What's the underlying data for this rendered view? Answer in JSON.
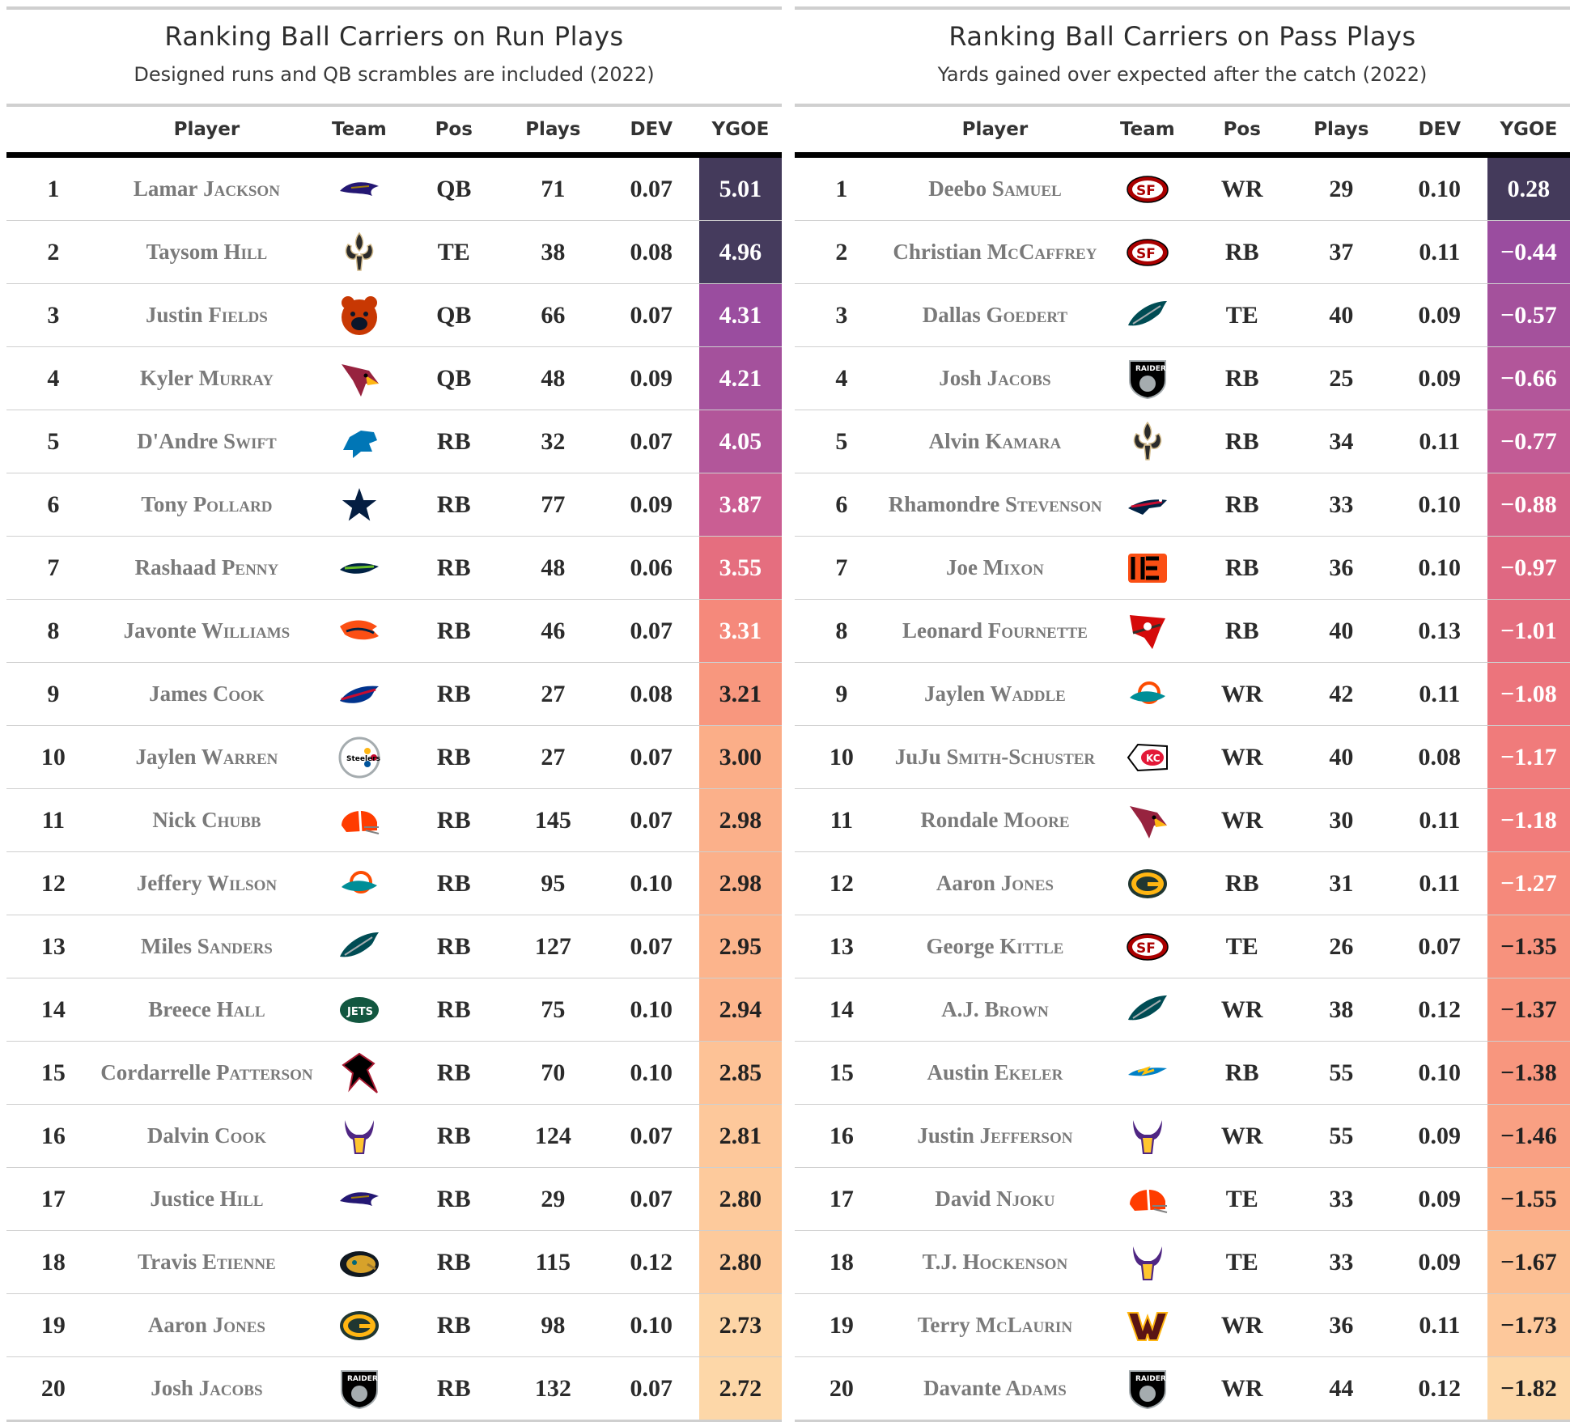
{
  "panels": [
    {
      "title": "Ranking Ball Carriers on Run Plays",
      "subtitle": "Designed runs and QB scrambles are included (2022)",
      "headers": {
        "rank": "",
        "player": "Player",
        "team": "Team",
        "pos": "Pos",
        "plays": "Plays",
        "dev": "DEV",
        "ygoe": "YGOE"
      },
      "rows": [
        {
          "rank": "1",
          "first": "Lamar",
          "last": "Jackson",
          "team": "ravens",
          "pos": "QB",
          "plays": "71",
          "dev": "0.07",
          "ygoe": "5.01",
          "color": "#443a5b",
          "text_color": "#ffffff"
        },
        {
          "rank": "2",
          "first": "Taysom",
          "last": "Hill",
          "team": "saints",
          "pos": "TE",
          "plays": "38",
          "dev": "0.08",
          "ygoe": "4.96",
          "color": "#453b5d",
          "text_color": "#ffffff"
        },
        {
          "rank": "3",
          "first": "Justin",
          "last": "Fields",
          "team": "bears",
          "pos": "QB",
          "plays": "66",
          "dev": "0.07",
          "ygoe": "4.31",
          "color": "#9a4d9f",
          "text_color": "#ffffff"
        },
        {
          "rank": "4",
          "first": "Kyler",
          "last": "Murray",
          "team": "cardinals",
          "pos": "QB",
          "plays": "48",
          "dev": "0.09",
          "ygoe": "4.21",
          "color": "#a4519c",
          "text_color": "#ffffff"
        },
        {
          "rank": "5",
          "first": "D'Andre",
          "last": "Swift",
          "team": "lions",
          "pos": "RB",
          "plays": "32",
          "dev": "0.07",
          "ygoe": "4.05",
          "color": "#b2569a",
          "text_color": "#ffffff"
        },
        {
          "rank": "6",
          "first": "Tony",
          "last": "Pollard",
          "team": "cowboys",
          "pos": "RB",
          "plays": "77",
          "dev": "0.09",
          "ygoe": "3.87",
          "color": "#ca5e93",
          "text_color": "#ffffff"
        },
        {
          "rank": "7",
          "first": "Rashaad",
          "last": "Penny",
          "team": "seahawks",
          "pos": "RB",
          "plays": "48",
          "dev": "0.06",
          "ygoe": "3.55",
          "color": "#e56e7f",
          "text_color": "#ffffff"
        },
        {
          "rank": "8",
          "first": "Javonte",
          "last": "Williams",
          "team": "broncos",
          "pos": "RB",
          "plays": "46",
          "dev": "0.07",
          "ygoe": "3.31",
          "color": "#f5897b",
          "text_color": "#ffffff"
        },
        {
          "rank": "9",
          "first": "James",
          "last": "Cook",
          "team": "bills",
          "pos": "RB",
          "plays": "27",
          "dev": "0.08",
          "ygoe": "3.21",
          "color": "#f8977e",
          "text_color": "#222222"
        },
        {
          "rank": "10",
          "first": "Jaylen",
          "last": "Warren",
          "team": "steelers",
          "pos": "RB",
          "plays": "27",
          "dev": "0.07",
          "ygoe": "3.00",
          "color": "#fbae88",
          "text_color": "#222222"
        },
        {
          "rank": "11",
          "first": "Nick",
          "last": "Chubb",
          "team": "browns",
          "pos": "RB",
          "plays": "145",
          "dev": "0.07",
          "ygoe": "2.98",
          "color": "#fbb08a",
          "text_color": "#222222"
        },
        {
          "rank": "12",
          "first": "Jeffery",
          "last": "Wilson",
          "team": "dolphins",
          "pos": "RB",
          "plays": "95",
          "dev": "0.10",
          "ygoe": "2.98",
          "color": "#fbb08a",
          "text_color": "#222222"
        },
        {
          "rank": "13",
          "first": "Miles",
          "last": "Sanders",
          "team": "eagles",
          "pos": "RB",
          "plays": "127",
          "dev": "0.07",
          "ygoe": "2.95",
          "color": "#fcb48c",
          "text_color": "#222222"
        },
        {
          "rank": "14",
          "first": "Breece",
          "last": "Hall",
          "team": "jets",
          "pos": "RB",
          "plays": "75",
          "dev": "0.10",
          "ygoe": "2.94",
          "color": "#fcb58d",
          "text_color": "#222222"
        },
        {
          "rank": "15",
          "first": "Cordarrelle",
          "last": "Patterson",
          "team": "falcons",
          "pos": "RB",
          "plays": "70",
          "dev": "0.10",
          "ygoe": "2.85",
          "color": "#fdc296",
          "text_color": "#222222"
        },
        {
          "rank": "16",
          "first": "Dalvin",
          "last": "Cook",
          "team": "vikings",
          "pos": "RB",
          "plays": "124",
          "dev": "0.07",
          "ygoe": "2.81",
          "color": "#fdc89b",
          "text_color": "#222222"
        },
        {
          "rank": "17",
          "first": "Justice",
          "last": "Hill",
          "team": "ravens",
          "pos": "RB",
          "plays": "29",
          "dev": "0.07",
          "ygoe": "2.80",
          "color": "#fdca9c",
          "text_color": "#222222"
        },
        {
          "rank": "18",
          "first": "Travis",
          "last": "Etienne",
          "team": "jaguars",
          "pos": "RB",
          "plays": "115",
          "dev": "0.12",
          "ygoe": "2.80",
          "color": "#fdca9c",
          "text_color": "#222222"
        },
        {
          "rank": "19",
          "first": "Aaron",
          "last": "Jones",
          "team": "packers",
          "pos": "RB",
          "plays": "98",
          "dev": "0.10",
          "ygoe": "2.73",
          "color": "#fdd5a6",
          "text_color": "#222222"
        },
        {
          "rank": "20",
          "first": "Josh",
          "last": "Jacobs",
          "team": "raiders",
          "pos": "RB",
          "plays": "132",
          "dev": "0.07",
          "ygoe": "2.72",
          "color": "#fdd7a8",
          "text_color": "#222222"
        }
      ]
    },
    {
      "title": "Ranking Ball Carriers on Pass Plays",
      "subtitle": "Yards gained over expected after the catch (2022)",
      "headers": {
        "rank": "",
        "player": "Player",
        "team": "Team",
        "pos": "Pos",
        "plays": "Plays",
        "dev": "DEV",
        "ygoe": "YGOE"
      },
      "rows": [
        {
          "rank": "1",
          "first": "Deebo",
          "last": "Samuel",
          "team": "49ers",
          "pos": "WR",
          "plays": "29",
          "dev": "0.10",
          "ygoe": "0.28",
          "color": "#443a5b",
          "text_color": "#ffffff"
        },
        {
          "rank": "2",
          "first": "Christian",
          "last": "McCaffrey",
          "team": "49ers",
          "pos": "RB",
          "plays": "37",
          "dev": "0.11",
          "ygoe": "−0.44",
          "color": "#9a4d9f",
          "text_color": "#ffffff"
        },
        {
          "rank": "3",
          "first": "Dallas",
          "last": "Goedert",
          "team": "eagles",
          "pos": "TE",
          "plays": "40",
          "dev": "0.09",
          "ygoe": "−0.57",
          "color": "#a4519c",
          "text_color": "#ffffff"
        },
        {
          "rank": "4",
          "first": "Josh",
          "last": "Jacobs",
          "team": "raiders",
          "pos": "RB",
          "plays": "25",
          "dev": "0.09",
          "ygoe": "−0.66",
          "color": "#b2569a",
          "text_color": "#ffffff"
        },
        {
          "rank": "5",
          "first": "Alvin",
          "last": "Kamara",
          "team": "saints",
          "pos": "RB",
          "plays": "34",
          "dev": "0.11",
          "ygoe": "−0.77",
          "color": "#c25b95",
          "text_color": "#ffffff"
        },
        {
          "rank": "6",
          "first": "Rhamondre",
          "last": "Stevenson",
          "team": "patriots",
          "pos": "RB",
          "plays": "33",
          "dev": "0.10",
          "ygoe": "−0.88",
          "color": "#d46288",
          "text_color": "#ffffff"
        },
        {
          "rank": "7",
          "first": "Joe",
          "last": "Mixon",
          "team": "bengals",
          "pos": "RB",
          "plays": "36",
          "dev": "0.10",
          "ygoe": "−0.97",
          "color": "#df6882",
          "text_color": "#ffffff"
        },
        {
          "rank": "8",
          "first": "Leonard",
          "last": "Fournette",
          "team": "buccaneers",
          "pos": "RB",
          "plays": "40",
          "dev": "0.13",
          "ygoe": "−1.01",
          "color": "#e56e7f",
          "text_color": "#ffffff"
        },
        {
          "rank": "9",
          "first": "Jaylen",
          "last": "Waddle",
          "team": "dolphins",
          "pos": "WR",
          "plays": "42",
          "dev": "0.11",
          "ygoe": "−1.08",
          "color": "#ec747c",
          "text_color": "#ffffff"
        },
        {
          "rank": "10",
          "first": "JuJu",
          "last": "Smith-Schuster",
          "team": "chiefs",
          "pos": "WR",
          "plays": "40",
          "dev": "0.08",
          "ygoe": "−1.17",
          "color": "#f07b7b",
          "text_color": "#ffffff"
        },
        {
          "rank": "11",
          "first": "Rondale",
          "last": "Moore",
          "team": "cardinals",
          "pos": "WR",
          "plays": "30",
          "dev": "0.11",
          "ygoe": "−1.18",
          "color": "#f17c7b",
          "text_color": "#ffffff"
        },
        {
          "rank": "12",
          "first": "Aaron",
          "last": "Jones",
          "team": "packers",
          "pos": "RB",
          "plays": "31",
          "dev": "0.11",
          "ygoe": "−1.27",
          "color": "#f5897b",
          "text_color": "#ffffff"
        },
        {
          "rank": "13",
          "first": "George",
          "last": "Kittle",
          "team": "49ers",
          "pos": "TE",
          "plays": "26",
          "dev": "0.07",
          "ygoe": "−1.35",
          "color": "#f7927d",
          "text_color": "#222222"
        },
        {
          "rank": "14",
          "first": "A.J.",
          "last": "Brown",
          "team": "eagles",
          "pos": "WR",
          "plays": "38",
          "dev": "0.12",
          "ygoe": "−1.37",
          "color": "#f8957e",
          "text_color": "#222222"
        },
        {
          "rank": "15",
          "first": "Austin",
          "last": "Ekeler",
          "team": "chargers",
          "pos": "RB",
          "plays": "55",
          "dev": "0.10",
          "ygoe": "−1.38",
          "color": "#f8967e",
          "text_color": "#222222"
        },
        {
          "rank": "16",
          "first": "Justin",
          "last": "Jefferson",
          "team": "vikings",
          "pos": "WR",
          "plays": "55",
          "dev": "0.09",
          "ygoe": "−1.46",
          "color": "#f9a083",
          "text_color": "#222222"
        },
        {
          "rank": "17",
          "first": "David",
          "last": "Njoku",
          "team": "browns",
          "pos": "TE",
          "plays": "33",
          "dev": "0.09",
          "ygoe": "−1.55",
          "color": "#fbae88",
          "text_color": "#222222"
        },
        {
          "rank": "18",
          "first": "T.J.",
          "last": "Hockenson",
          "team": "vikings",
          "pos": "TE",
          "plays": "33",
          "dev": "0.09",
          "ygoe": "−1.67",
          "color": "#fcbf93",
          "text_color": "#222222"
        },
        {
          "rank": "19",
          "first": "Terry",
          "last": "McLaurin",
          "team": "commanders",
          "pos": "WR",
          "plays": "36",
          "dev": "0.11",
          "ygoe": "−1.73",
          "color": "#fdc89b",
          "text_color": "#222222"
        },
        {
          "rank": "20",
          "first": "Davante",
          "last": "Adams",
          "team": "raiders",
          "pos": "WR",
          "plays": "44",
          "dev": "0.12",
          "ygoe": "−1.82",
          "color": "#fdd7a8",
          "text_color": "#222222"
        }
      ]
    }
  ]
}
